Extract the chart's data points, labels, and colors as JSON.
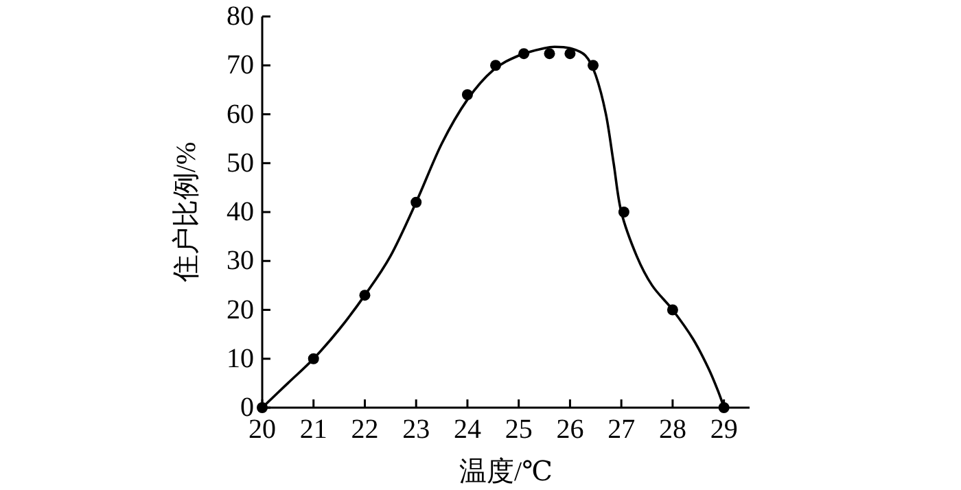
{
  "chart_data": {
    "type": "scatter",
    "xlabel": "温度/℃",
    "ylabel": "住户比例/%",
    "xlim": [
      20,
      29.5
    ],
    "ylim": [
      0,
      80
    ],
    "xticks": [
      20,
      21,
      22,
      23,
      24,
      25,
      26,
      27,
      28,
      29
    ],
    "yticks": [
      0,
      10,
      20,
      30,
      40,
      50,
      60,
      70,
      80
    ],
    "grid": false,
    "series": [
      {
        "color": "#000000",
        "marker": "circle",
        "x": [
          20,
          21,
          22,
          23,
          24,
          24.55,
          25.1,
          25.6,
          26,
          26.45,
          27.05,
          28,
          29
        ],
        "values": [
          0,
          10,
          23,
          42,
          64,
          70,
          72.4,
          72.4,
          72.4,
          70,
          40,
          20,
          0
        ]
      },
      {
        "type": "line",
        "color": "#000000",
        "line_style": "solid",
        "marker": "none",
        "x": [
          20,
          20.5,
          21,
          21.5,
          22,
          22.5,
          23,
          23.5,
          24,
          24.5,
          25,
          25.5,
          25.7,
          26,
          26.3,
          26.5,
          26.7,
          26.85,
          27,
          27.3,
          27.6,
          28,
          28.4,
          28.7,
          28.9,
          29
        ],
        "values": [
          0,
          5,
          10,
          16,
          23,
          31,
          42,
          54,
          63,
          69,
          72,
          73.5,
          73.8,
          73.5,
          72,
          68,
          60,
          50,
          40,
          31,
          25,
          20,
          14,
          8,
          3,
          0
        ]
      }
    ]
  }
}
